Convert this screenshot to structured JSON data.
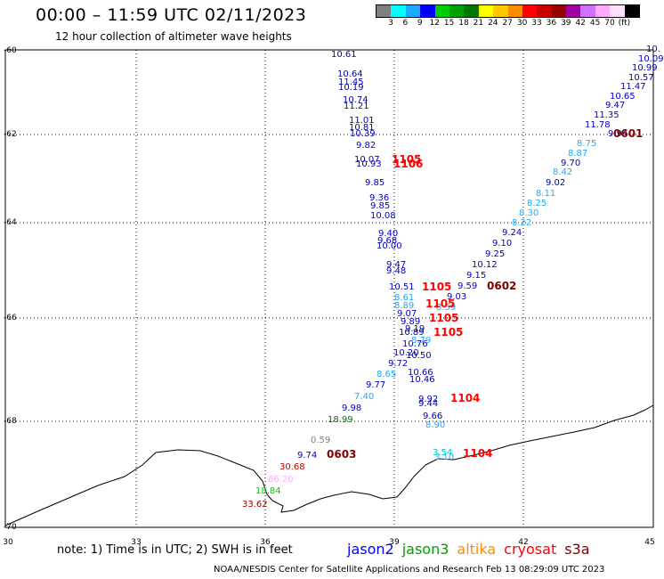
{
  "title": "00:00 – 11:59 UTC 02/11/2023",
  "subtitle": "12 hour collection of altimeter wave heights",
  "legend": {
    "colors": [
      "#7f7f7f",
      "#00ffff",
      "#1eaaff",
      "#0000ff",
      "#00cc00",
      "#00a000",
      "#007800",
      "#ffff00",
      "#ffc800",
      "#ff8c00",
      "#ff0000",
      "#c80000",
      "#960000",
      "#a000a0",
      "#d070ff",
      "#ffaaff",
      "#ffe0ff",
      "#000000"
    ],
    "labels": [
      "3",
      "6",
      "9",
      "12",
      "15",
      "18",
      "21",
      "24",
      "27",
      "30",
      "33",
      "36",
      "39",
      "42",
      "45",
      "70",
      "(ft)"
    ]
  },
  "axes": {
    "y_ticks": [
      "-60",
      "-62",
      "-64",
      "-66",
      "-68",
      "-70"
    ],
    "x_ticks": [
      "30",
      "33",
      "36",
      "39",
      "42",
      "45"
    ]
  },
  "wave_heights": [
    {
      "t": "10.61",
      "c": "#0000c0"
    },
    {
      "t": "10.64",
      "c": "#0000c0"
    },
    {
      "t": "11.45",
      "c": "#0000c0"
    },
    {
      "t": "10.19",
      "c": "#0000c0"
    },
    {
      "t": "10.74",
      "c": "#0000c0"
    },
    {
      "t": "11.21",
      "c": "#0000c0"
    },
    {
      "t": "11.01",
      "c": "#0000c0"
    },
    {
      "t": "10.81",
      "c": "#0000c0"
    },
    {
      "t": "10.39",
      "c": "#0000c0"
    },
    {
      "t": "9.82",
      "c": "#0000c0"
    },
    {
      "t": "10.07",
      "c": "#0000c0"
    },
    {
      "t": "10.93",
      "c": "#0000c0"
    },
    {
      "t": "9.85",
      "c": "#0000c0"
    },
    {
      "t": "9.36",
      "c": "#0000c0"
    },
    {
      "t": "9.85",
      "c": "#0000c0"
    },
    {
      "t": "10.08",
      "c": "#0000c0"
    },
    {
      "t": "9.40",
      "c": "#0000c0"
    },
    {
      "t": "9.68",
      "c": "#0000c0"
    },
    {
      "t": "10.00",
      "c": "#0000c0"
    },
    {
      "t": "9.47",
      "c": "#0000c0"
    },
    {
      "t": "9.48",
      "c": "#0000c0"
    },
    {
      "t": "10.51",
      "c": "#0000c0"
    },
    {
      "t": "8.61",
      "c": "#1eaaff"
    },
    {
      "t": "8.89",
      "c": "#1eaaff"
    },
    {
      "t": "9.07",
      "c": "#0000c0"
    },
    {
      "t": "9.89",
      "c": "#0000c0"
    },
    {
      "t": "9.19",
      "c": "#0000c0"
    },
    {
      "t": "10.89",
      "c": "#0000c0"
    },
    {
      "t": "10.76",
      "c": "#0000c0"
    },
    {
      "t": "8.79",
      "c": "#1eaaff"
    },
    {
      "t": "10.20",
      "c": "#0000c0"
    },
    {
      "t": "10.50",
      "c": "#0000c0"
    },
    {
      "t": "9.72",
      "c": "#0000c0"
    },
    {
      "t": "10.66",
      "c": "#0000c0"
    },
    {
      "t": "8.65",
      "c": "#1eaaff"
    },
    {
      "t": "10.46",
      "c": "#0000c0"
    },
    {
      "t": "9.77",
      "c": "#0000c0"
    },
    {
      "t": "7.40",
      "c": "#1eaaff"
    },
    {
      "t": "9.98",
      "c": "#0000c0"
    },
    {
      "t": "18.99",
      "c": "#007800"
    },
    {
      "t": "9.92",
      "c": "#0000c0"
    },
    {
      "t": "9.44",
      "c": "#0000c0"
    },
    {
      "t": "9.66",
      "c": "#0000c0"
    },
    {
      "t": "8.90",
      "c": "#1eaaff"
    },
    {
      "t": "0.59",
      "c": "#7f7f7f"
    },
    {
      "t": "9.74",
      "c": "#0000c0"
    },
    {
      "t": "30.68",
      "c": "#c80000"
    },
    {
      "t": "66.20",
      "c": "#ffaaff"
    },
    {
      "t": "18.84",
      "c": "#00c800"
    },
    {
      "t": "33.62",
      "c": "#960000"
    },
    {
      "t": "3.54",
      "c": "#00c8c8"
    },
    {
      "t": "3.10",
      "c": "#1eaaff"
    },
    {
      "t": "9.59",
      "c": "#0000c0"
    },
    {
      "t": "9.03",
      "c": "#0000c0"
    },
    {
      "t": "8.59",
      "c": "#1eaaff"
    },
    {
      "t": "9.15",
      "c": "#0000c0"
    },
    {
      "t": "10.12",
      "c": "#0000c0"
    },
    {
      "t": "9.25",
      "c": "#0000c0"
    },
    {
      "t": "9.10",
      "c": "#0000c0"
    },
    {
      "t": "9.24",
      "c": "#0000c0"
    },
    {
      "t": "8.22",
      "c": "#1eaaff"
    },
    {
      "t": "8.30",
      "c": "#1eaaff"
    },
    {
      "t": "8.25",
      "c": "#1eaaff"
    },
    {
      "t": "8.11",
      "c": "#1eaaff"
    },
    {
      "t": "9.02",
      "c": "#0000c0"
    },
    {
      "t": "8.42",
      "c": "#1eaaff"
    },
    {
      "t": "9.70",
      "c": "#0000c0"
    },
    {
      "t": "8.87",
      "c": "#1eaaff"
    },
    {
      "t": "8.75",
      "c": "#1eaaff"
    },
    {
      "t": "9.94",
      "c": "#0000c0"
    },
    {
      "t": "11.78",
      "c": "#0000c0"
    },
    {
      "t": "11.35",
      "c": "#0000c0"
    },
    {
      "t": "9.47",
      "c": "#0000c0"
    },
    {
      "t": "10.65",
      "c": "#0000c0"
    },
    {
      "t": "11.47",
      "c": "#0000c0"
    },
    {
      "t": "10.57",
      "c": "#0000c0"
    },
    {
      "t": "10.99",
      "c": "#0000c0"
    },
    {
      "t": "10.09",
      "c": "#0000c0"
    },
    {
      "t": "10.",
      "c": "#0000c0"
    }
  ],
  "times": [
    {
      "t": "1105",
      "c": "#ff0000"
    },
    {
      "t": "1106",
      "c": "#ff0000"
    },
    {
      "t": "1105",
      "c": "#ff0000"
    },
    {
      "t": "1105",
      "c": "#ff0000"
    },
    {
      "t": "1105",
      "c": "#ff0000"
    },
    {
      "t": "1105",
      "c": "#ff0000"
    },
    {
      "t": "1104",
      "c": "#ff0000"
    },
    {
      "t": "1104",
      "c": "#ff0000"
    },
    {
      "t": "0602",
      "c": "#800000"
    },
    {
      "t": "0601",
      "c": "#800000"
    },
    {
      "t": "0603",
      "c": "#800000"
    }
  ],
  "note": "note:  1) Time is in UTC;  2) SWH is in feet",
  "missions": [
    {
      "name": "jason2",
      "color": "#0000ff"
    },
    {
      "name": "jason3",
      "color": "#00a000"
    },
    {
      "name": "altika",
      "color": "#ff8c00"
    },
    {
      "name": "cryosat",
      "color": "#ff0000"
    },
    {
      "name": "s3a",
      "color": "#800000"
    }
  ],
  "credit": "NOAA/NESDIS Center for Satellite Applications and Research    Feb 13 08:29:09 UTC 2023"
}
